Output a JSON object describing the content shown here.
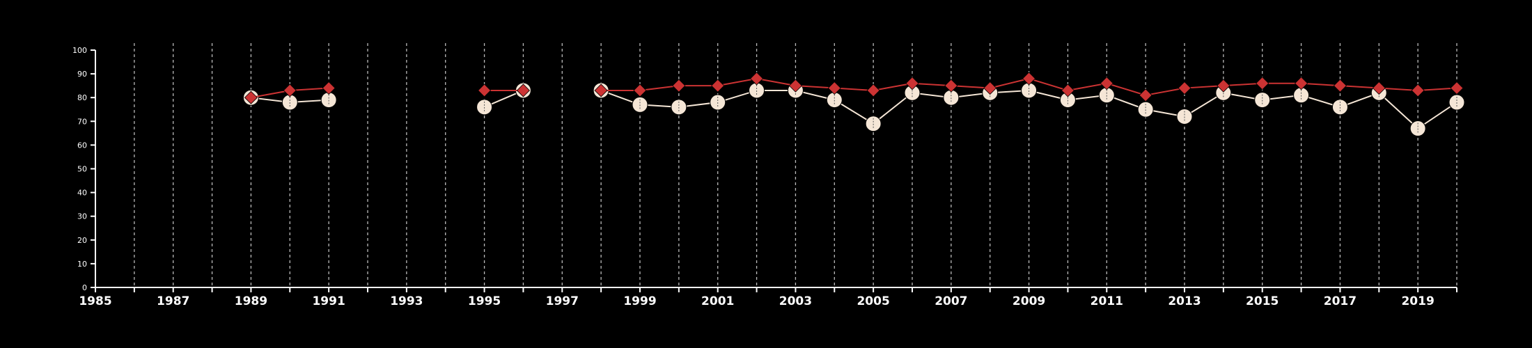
{
  "chart_data": {
    "type": "line",
    "title": "",
    "xlabel": "",
    "ylabel": "",
    "xlim": [
      1985,
      2020
    ],
    "ylim": [
      0,
      100
    ],
    "x_ticks": [
      1985,
      1987,
      1989,
      1991,
      1993,
      1995,
      1997,
      1999,
      2001,
      2003,
      2005,
      2007,
      2009,
      2011,
      2013,
      2015,
      2017,
      2019
    ],
    "x_gridlines": [
      1986,
      1987,
      1988,
      1989,
      1990,
      1991,
      1992,
      1993,
      1994,
      1995,
      1996,
      1997,
      1998,
      1999,
      2000,
      2001,
      2002,
      2003,
      2004,
      2005,
      2006,
      2007,
      2008,
      2009,
      2010,
      2011,
      2012,
      2013,
      2014,
      2015,
      2016,
      2017,
      2018,
      2019,
      2020
    ],
    "y_ticks": [
      0,
      10,
      20,
      30,
      40,
      50,
      60,
      70,
      80,
      90,
      100
    ],
    "grid": "vertical dashed",
    "legend": "none",
    "colors": {
      "background": "#000000",
      "axis": "#ffffff",
      "grid": "#bbbbbb",
      "series_a": "#f5e6d6",
      "series_b": "#cc3333"
    },
    "series": [
      {
        "marker": "circle",
        "color": "#f5e6d6",
        "points": [
          [
            1989,
            80
          ],
          [
            1990,
            78
          ],
          [
            1991,
            79
          ],
          [
            1995,
            76
          ],
          [
            1996,
            83
          ],
          [
            1998,
            83
          ],
          [
            1999,
            77
          ],
          [
            2000,
            76
          ],
          [
            2001,
            78
          ],
          [
            2002,
            83
          ],
          [
            2003,
            83
          ],
          [
            2004,
            79
          ],
          [
            2005,
            69
          ],
          [
            2006,
            82
          ],
          [
            2007,
            80
          ],
          [
            2008,
            82
          ],
          [
            2009,
            83
          ],
          [
            2010,
            79
          ],
          [
            2011,
            81
          ],
          [
            2012,
            75
          ],
          [
            2013,
            72
          ],
          [
            2014,
            82
          ],
          [
            2015,
            79
          ],
          [
            2016,
            81
          ],
          [
            2017,
            76
          ],
          [
            2018,
            82
          ],
          [
            2019,
            67
          ],
          [
            2020,
            78
          ]
        ]
      },
      {
        "marker": "diamond",
        "color": "#cc3333",
        "points": [
          [
            1989,
            80
          ],
          [
            1990,
            83
          ],
          [
            1991,
            84
          ],
          [
            1995,
            83
          ],
          [
            1996,
            83
          ],
          [
            1998,
            83
          ],
          [
            1999,
            83
          ],
          [
            2000,
            85
          ],
          [
            2001,
            85
          ],
          [
            2002,
            88
          ],
          [
            2003,
            85
          ],
          [
            2004,
            84
          ],
          [
            2005,
            83
          ],
          [
            2006,
            86
          ],
          [
            2007,
            85
          ],
          [
            2008,
            84
          ],
          [
            2009,
            88
          ],
          [
            2010,
            83
          ],
          [
            2011,
            86
          ],
          [
            2012,
            81
          ],
          [
            2013,
            84
          ],
          [
            2014,
            85
          ],
          [
            2015,
            86
          ],
          [
            2016,
            86
          ],
          [
            2017,
            85
          ],
          [
            2018,
            84
          ],
          [
            2019,
            83
          ],
          [
            2020,
            84
          ]
        ]
      }
    ]
  }
}
